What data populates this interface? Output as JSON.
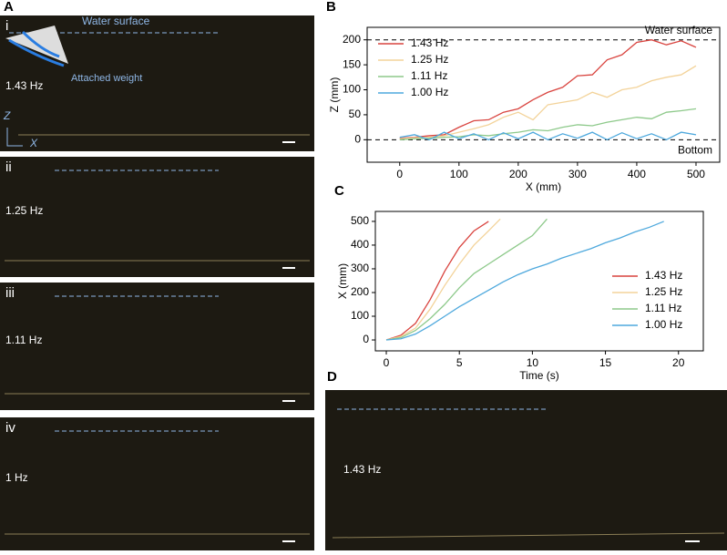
{
  "chart_data": [
    {
      "type": "line",
      "panel": "B",
      "xlabel": "X (mm)",
      "ylabel": "Z (mm)",
      "xlim": [
        -55,
        540
      ],
      "ylim": [
        -45,
        225
      ],
      "xticks": [
        0,
        100,
        200,
        300,
        400,
        500
      ],
      "yticks": [
        0,
        50,
        100,
        150,
        200
      ],
      "hlines": [
        {
          "value": 200,
          "label": "Water surface"
        },
        {
          "value": 0,
          "label": "Bottom"
        }
      ],
      "legend": "upper left",
      "series": [
        {
          "name": "1.43 Hz",
          "color": "#d9443f",
          "x": [
            0,
            25,
            50,
            75,
            100,
            125,
            150,
            175,
            200,
            225,
            250,
            275,
            300,
            325,
            350,
            375,
            400,
            425,
            450,
            475,
            500
          ],
          "values": [
            3,
            5,
            8,
            10,
            25,
            38,
            40,
            55,
            62,
            80,
            95,
            105,
            128,
            130,
            160,
            170,
            195,
            200,
            190,
            198,
            185
          ]
        },
        {
          "name": "1.25 Hz",
          "color": "#f3d39a",
          "x": [
            0,
            25,
            50,
            75,
            100,
            125,
            150,
            175,
            200,
            225,
            250,
            275,
            300,
            325,
            350,
            375,
            400,
            425,
            450,
            475,
            500
          ],
          "values": [
            2,
            4,
            5,
            8,
            15,
            22,
            30,
            45,
            55,
            40,
            70,
            75,
            80,
            95,
            85,
            100,
            105,
            118,
            125,
            130,
            148
          ]
        },
        {
          "name": "1.11 Hz",
          "color": "#8dc98a",
          "x": [
            0,
            25,
            50,
            75,
            100,
            125,
            150,
            175,
            200,
            225,
            250,
            275,
            300,
            325,
            350,
            375,
            400,
            425,
            450,
            475,
            500
          ],
          "values": [
            0,
            2,
            3,
            5,
            6,
            10,
            8,
            12,
            15,
            20,
            18,
            25,
            30,
            28,
            35,
            40,
            45,
            42,
            55,
            58,
            62
          ]
        },
        {
          "name": "1.00 Hz",
          "color": "#4fa9dd",
          "x": [
            0,
            25,
            50,
            75,
            100,
            125,
            150,
            175,
            200,
            225,
            250,
            275,
            300,
            325,
            350,
            375,
            400,
            425,
            450,
            475,
            500
          ],
          "values": [
            5,
            10,
            0,
            15,
            2,
            12,
            0,
            14,
            2,
            15,
            0,
            12,
            3,
            15,
            0,
            14,
            2,
            12,
            0,
            15,
            10
          ]
        }
      ]
    },
    {
      "type": "line",
      "panel": "C",
      "xlabel": "Time (s)",
      "ylabel": "X (mm)",
      "xlim": [
        -0.75,
        21.7
      ],
      "ylim": [
        -46,
        542
      ],
      "xticks": [
        0,
        5,
        10,
        15,
        20
      ],
      "yticks": [
        0,
        100,
        200,
        300,
        400,
        500
      ],
      "legend": "lower right",
      "series": [
        {
          "name": "1.43 Hz",
          "color": "#d9443f",
          "x": [
            0,
            1,
            2,
            3,
            4,
            5,
            6,
            7
          ],
          "values": [
            0,
            20,
            70,
            170,
            290,
            390,
            460,
            500
          ]
        },
        {
          "name": "1.25 Hz",
          "color": "#f3d39a",
          "x": [
            0,
            1,
            2,
            3,
            4,
            5,
            6,
            7,
            7.8
          ],
          "values": [
            0,
            15,
            50,
            130,
            230,
            320,
            400,
            460,
            510
          ]
        },
        {
          "name": "1.11 Hz",
          "color": "#8dc98a",
          "x": [
            0,
            1,
            2,
            3,
            4,
            5,
            6,
            7,
            8,
            9,
            10,
            11
          ],
          "values": [
            0,
            10,
            40,
            90,
            150,
            220,
            280,
            320,
            360,
            400,
            440,
            510
          ]
        },
        {
          "name": "1.00 Hz",
          "color": "#4fa9dd",
          "x": [
            0,
            1,
            2,
            3,
            4,
            5,
            6,
            7,
            8,
            9,
            10,
            11,
            12,
            13,
            14,
            15,
            16,
            17,
            18,
            19
          ],
          "values": [
            0,
            5,
            25,
            60,
            100,
            140,
            175,
            210,
            245,
            275,
            300,
            320,
            345,
            365,
            385,
            410,
            430,
            455,
            475,
            500
          ]
        }
      ]
    }
  ],
  "panel_a": {
    "letter": "A",
    "inset": {
      "water": "Water surface",
      "weight": "Attached weight",
      "z": "Z",
      "x": "X"
    },
    "rows": [
      {
        "roman": "i",
        "freq": "1.43 Hz"
      },
      {
        "roman": "ii",
        "freq": "1.25 Hz"
      },
      {
        "roman": "iii",
        "freq": "1.11 Hz"
      },
      {
        "roman": "iv",
        "freq": "1 Hz"
      }
    ]
  },
  "panel_d": {
    "letter": "D",
    "freq": "1.43 Hz"
  }
}
